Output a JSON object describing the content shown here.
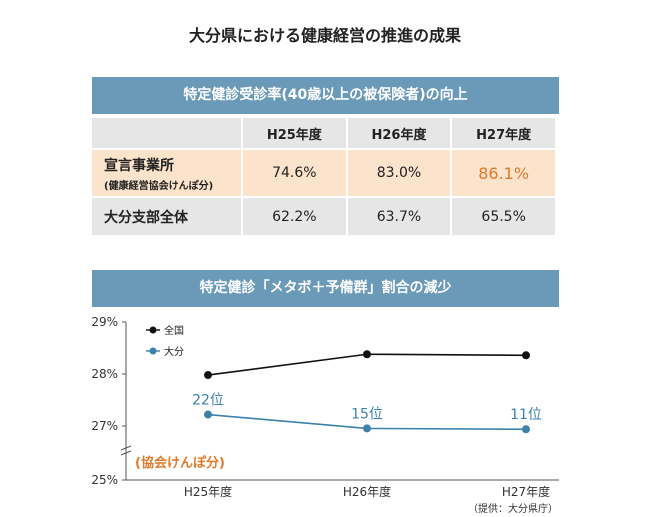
{
  "title": "大分県における健康経営の推進の成果",
  "table": {
    "heading": "特定健診受診率(40歳以上の被保険者)の向上",
    "columns": [
      "H25年度",
      "H26年度",
      "H27年度"
    ],
    "rows": [
      {
        "label": "宣言事業所",
        "sublabel": "(健康経営協会けんぽ分)",
        "values": [
          "74.6%",
          "83.0%",
          "86.1%"
        ]
      },
      {
        "label": "大分支部全体",
        "sublabel": "",
        "values": [
          "62.2%",
          "63.7%",
          "65.5%"
        ]
      }
    ]
  },
  "chart_heading": "特定健診「メタボ＋予備群」割合の減少",
  "chart_data": {
    "type": "line",
    "categories": [
      "H25年度",
      "H26年度",
      "H27年度"
    ],
    "ylim": [
      25,
      29
    ],
    "yticks": [
      "25%",
      "27%",
      "28%",
      "29%"
    ],
    "ytick_values": [
      25,
      27,
      28,
      29
    ],
    "axis_break": true,
    "series": [
      {
        "name": "全国",
        "color": "#111111",
        "values": [
          27.98,
          28.38,
          28.36
        ]
      },
      {
        "name": "大分",
        "color": "#3b82ad",
        "values": [
          27.22,
          26.91,
          26.88
        ],
        "point_labels": [
          "22位",
          "15位",
          "11位"
        ]
      }
    ],
    "annotation": "(協会けんぽ分)",
    "annotation_color": "#e07a2a",
    "legend": "top-left"
  },
  "source": "（提供：大分県庁）"
}
